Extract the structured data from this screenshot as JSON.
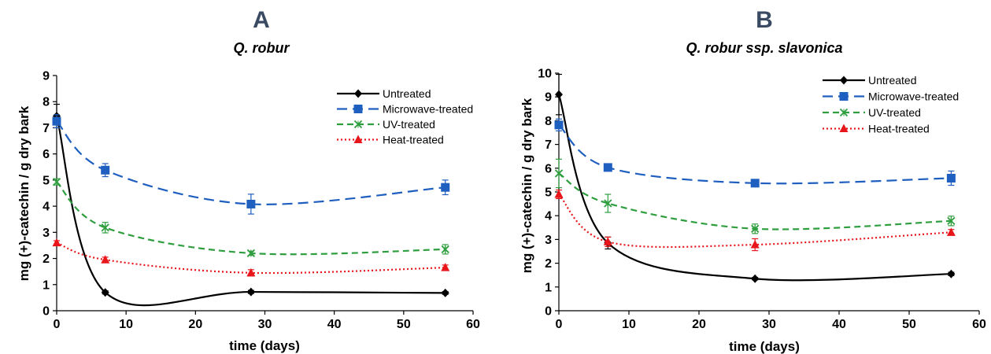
{
  "chart_data": [
    {
      "type": "line",
      "panel": "A",
      "title": "Q. robur",
      "xlabel": "time (days)",
      "ylabel": "mg (+)-catechin / g dry bark",
      "xlim": [
        0,
        60
      ],
      "ylim": [
        0,
        9
      ],
      "xticks": [
        "0",
        "10",
        "20",
        "30",
        "40",
        "50",
        "60"
      ],
      "yticks": [
        "0",
        "1",
        "2",
        "3",
        "4",
        "5",
        "6",
        "7",
        "8",
        "9"
      ],
      "grid": false,
      "legend_position": "top-right",
      "x": [
        0,
        7,
        28,
        56
      ],
      "series": [
        {
          "name": "Untreated",
          "values": [
            7.45,
            0.7,
            0.72,
            0.68
          ],
          "errors": [
            0.45,
            0.06,
            0.06,
            0.05
          ],
          "color": "#000000",
          "marker": "diamond",
          "dash": "solid"
        },
        {
          "name": "Microwave-treated",
          "values": [
            7.25,
            5.38,
            4.08,
            4.72
          ],
          "errors": [
            0.25,
            0.25,
            0.38,
            0.28
          ],
          "color": "#1f5fbf",
          "marker": "square",
          "dash": "long-dash"
        },
        {
          "name": "UV-treated",
          "values": [
            4.93,
            3.18,
            2.2,
            2.35
          ],
          "errors": [
            0.12,
            0.2,
            0.08,
            0.18
          ],
          "color": "#2e9e3e",
          "marker": "x",
          "dash": "dash"
        },
        {
          "name": "Heat-treated",
          "values": [
            2.6,
            1.95,
            1.45,
            1.65
          ],
          "errors": [
            0.08,
            0.1,
            0.12,
            0.1
          ],
          "color": "#e8161b",
          "marker": "triangle",
          "dash": "dot"
        }
      ]
    },
    {
      "type": "line",
      "panel": "B",
      "title": "Q. robur ssp. slavonica",
      "xlabel": "time (days)",
      "ylabel": "mg (+)-catechin / g dry bark",
      "xlim": [
        0,
        60
      ],
      "ylim": [
        0,
        10
      ],
      "xticks": [
        "0",
        "10",
        "20",
        "30",
        "40",
        "50",
        "60"
      ],
      "yticks": [
        "0",
        "1",
        "2",
        "3",
        "4",
        "5",
        "6",
        "7",
        "8",
        "9",
        "10"
      ],
      "grid": false,
      "legend_position": "top-right",
      "x": [
        0,
        7,
        28,
        56
      ],
      "series": [
        {
          "name": "Untreated",
          "values": [
            9.1,
            2.85,
            1.35,
            1.55
          ],
          "errors": [
            0.85,
            0.25,
            0.05,
            0.07
          ],
          "color": "#000000",
          "marker": "diamond",
          "dash": "solid"
        },
        {
          "name": "Microwave-treated",
          "values": [
            7.82,
            6.03,
            5.37,
            5.58
          ],
          "errors": [
            0.25,
            0.1,
            0.12,
            0.3
          ],
          "color": "#1f5fbf",
          "marker": "square",
          "dash": "long-dash"
        },
        {
          "name": "UV-treated",
          "values": [
            5.78,
            4.52,
            3.45,
            3.78
          ],
          "errors": [
            0.6,
            0.38,
            0.2,
            0.2
          ],
          "color": "#2e9e3e",
          "marker": "x",
          "dash": "dash"
        },
        {
          "name": "Heat-treated",
          "values": [
            4.9,
            2.9,
            2.78,
            3.3
          ],
          "errors": [
            0.18,
            0.2,
            0.25,
            0.12
          ],
          "color": "#e8161b",
          "marker": "triangle",
          "dash": "dot"
        }
      ]
    }
  ]
}
